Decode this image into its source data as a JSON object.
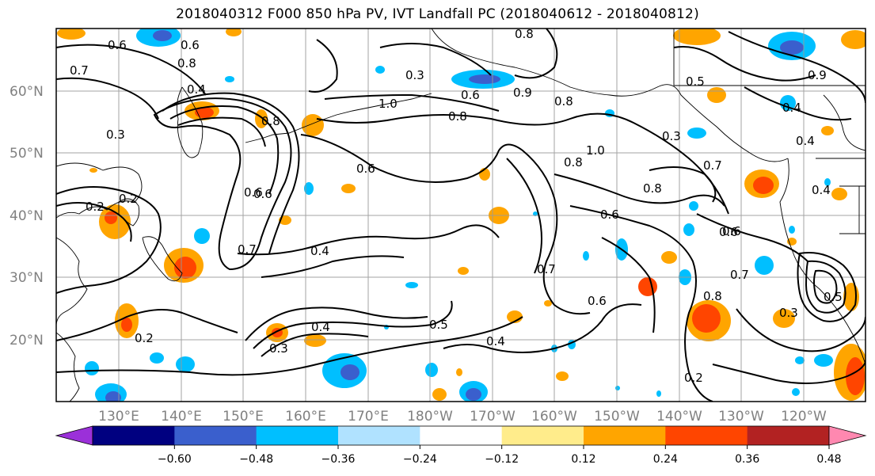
{
  "title": "2018040312 F000 850 hPa PV, IVT Landfall PC (2018040612 - 2018040812)",
  "map": {
    "lat_ticks": [
      {
        "label": "60°N",
        "lat": 60
      },
      {
        "label": "50°N",
        "lat": 50
      },
      {
        "label": "40°N",
        "lat": 40
      },
      {
        "label": "30°N",
        "lat": 30
      },
      {
        "label": "20°N",
        "lat": 20
      }
    ],
    "lon_ticks": [
      {
        "label": "130°E",
        "lon": 130
      },
      {
        "label": "140°E",
        "lon": 140
      },
      {
        "label": "150°E",
        "lon": 150
      },
      {
        "label": "160°E",
        "lon": 160
      },
      {
        "label": "170°E",
        "lon": 170
      },
      {
        "label": "180°W",
        "lon": 180
      },
      {
        "label": "170°W",
        "lon": 190
      },
      {
        "label": "160°W",
        "lon": 200
      },
      {
        "label": "150°W",
        "lon": 210
      },
      {
        "label": "140°W",
        "lon": 220
      },
      {
        "label": "130°W",
        "lon": 230
      },
      {
        "label": "120°W",
        "lon": 240
      }
    ],
    "contour_labels": [
      "0.6",
      "0.7",
      "0.4",
      "0.3",
      "0.2",
      "0.6",
      "0.6",
      "0.7",
      "0.6",
      "0.4",
      "0.7",
      "0.2",
      "0.8",
      "0.3",
      "1.0",
      "0.8",
      "0.6",
      "0.9",
      "0.8",
      "0.6",
      "0.8",
      "0.4",
      "0.3",
      "0.5",
      "0.8",
      "0.6",
      "0.7",
      "0.8",
      "1.0",
      "0.8",
      "0.6",
      "0.2",
      "0.4",
      "0.5",
      "0.3",
      "0.4",
      "0.6",
      "0.7",
      "0.8",
      "0.3",
      "0.2",
      "0.6",
      "0.4",
      "0.9",
      "0.5",
      "0.4"
    ]
  },
  "colorbar": {
    "colors": [
      "#9b30d9",
      "#000080",
      "#3a5fcd",
      "#00bfff",
      "#b0e2ff",
      "#ffffff",
      "#ffec8b",
      "#ffa500",
      "#ff4500",
      "#b22222",
      "#ff88b0"
    ],
    "ticks": [
      "−0.60",
      "−0.48",
      "−0.36",
      "−0.24",
      "−0.12",
      "0.12",
      "0.24",
      "0.36",
      "0.48",
      "0.60"
    ]
  },
  "shading": {
    "positive_light": "#ffec8b",
    "positive_mid": "#ffa500",
    "positive_strong": "#ff4500",
    "negative_light": "#b0e2ff",
    "negative_mid": "#00bfff",
    "negative_strong": "#3a5fcd"
  }
}
